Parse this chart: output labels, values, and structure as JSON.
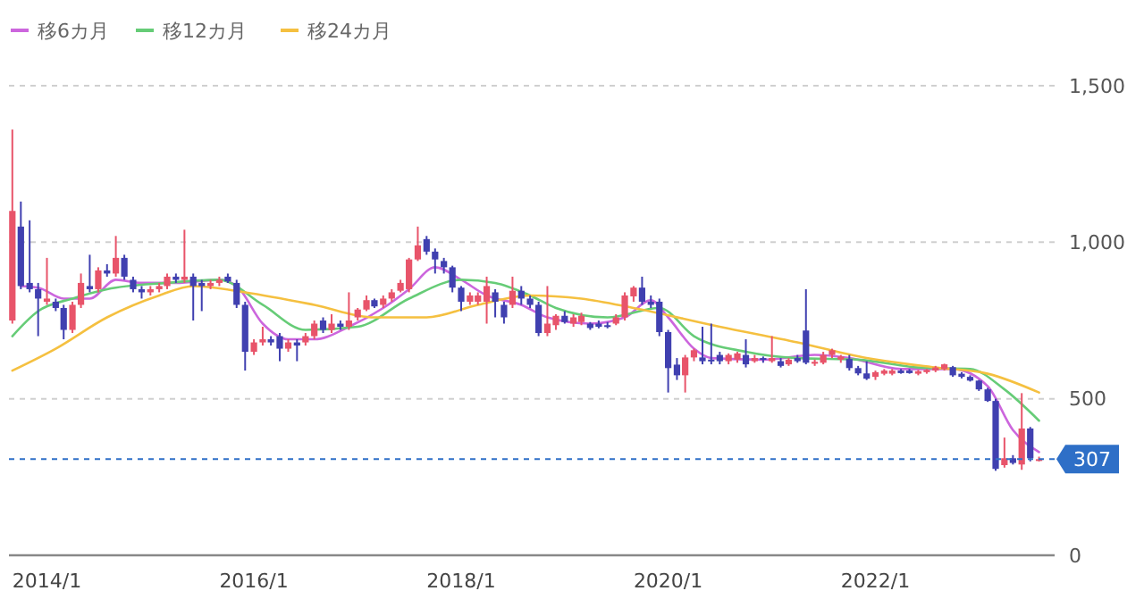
{
  "chart_data": {
    "type": "candlestick",
    "x": [
      "2013-09",
      "2013-10",
      "2013-11",
      "2013-12",
      "2014-01",
      "2014-02",
      "2014-03",
      "2014-04",
      "2014-05",
      "2014-06",
      "2014-07",
      "2014-08",
      "2014-09",
      "2014-10",
      "2014-11",
      "2014-12",
      "2015-01",
      "2015-02",
      "2015-03",
      "2015-04",
      "2015-05",
      "2015-06",
      "2015-07",
      "2015-08",
      "2015-09",
      "2015-10",
      "2015-11",
      "2015-12",
      "2016-01",
      "2016-02",
      "2016-03",
      "2016-04",
      "2016-05",
      "2016-06",
      "2016-07",
      "2016-08",
      "2016-09",
      "2016-10",
      "2016-11",
      "2016-12",
      "2017-01",
      "2017-02",
      "2017-03",
      "2017-04",
      "2017-05",
      "2017-06",
      "2017-07",
      "2017-08",
      "2017-09",
      "2017-10",
      "2017-11",
      "2017-12",
      "2018-01",
      "2018-02",
      "2018-03",
      "2018-04",
      "2018-05",
      "2018-06",
      "2018-07",
      "2018-08",
      "2018-09",
      "2018-10",
      "2018-11",
      "2018-12",
      "2019-01",
      "2019-02",
      "2019-03",
      "2019-04",
      "2019-05",
      "2019-06",
      "2019-07",
      "2019-08",
      "2019-09",
      "2019-10",
      "2019-11",
      "2019-12",
      "2020-01",
      "2020-02",
      "2020-03",
      "2020-04",
      "2020-05",
      "2020-06",
      "2020-07",
      "2020-08",
      "2020-09",
      "2020-10",
      "2020-11",
      "2020-12",
      "2021-01",
      "2021-02",
      "2021-03",
      "2021-04",
      "2021-05",
      "2021-06",
      "2021-07",
      "2021-08",
      "2021-09",
      "2021-10",
      "2021-11",
      "2021-12",
      "2022-01",
      "2022-02",
      "2022-03",
      "2022-04",
      "2022-05",
      "2022-06",
      "2022-07",
      "2022-08",
      "2022-09",
      "2022-10",
      "2022-11",
      "2022-12",
      "2023-01",
      "2023-02",
      "2023-03",
      "2023-04",
      "2023-05",
      "2023-06",
      "2023-07",
      "2023-08"
    ],
    "ohlc": [
      [
        750,
        1360,
        740,
        1100
      ],
      [
        1050,
        1130,
        850,
        860
      ],
      [
        870,
        1070,
        840,
        850
      ],
      [
        850,
        870,
        700,
        820
      ],
      [
        810,
        950,
        800,
        820
      ],
      [
        810,
        820,
        780,
        790
      ],
      [
        790,
        800,
        690,
        720
      ],
      [
        720,
        810,
        710,
        800
      ],
      [
        800,
        900,
        790,
        870
      ],
      [
        860,
        960,
        840,
        850
      ],
      [
        850,
        920,
        840,
        910
      ],
      [
        910,
        930,
        890,
        900
      ],
      [
        900,
        1020,
        890,
        950
      ],
      [
        950,
        960,
        880,
        890
      ],
      [
        880,
        890,
        840,
        850
      ],
      [
        850,
        860,
        820,
        840
      ],
      [
        840,
        860,
        830,
        850
      ],
      [
        850,
        870,
        840,
        860
      ],
      [
        860,
        900,
        850,
        890
      ],
      [
        890,
        900,
        870,
        880
      ],
      [
        880,
        1040,
        870,
        890
      ],
      [
        890,
        900,
        750,
        860
      ],
      [
        870,
        880,
        780,
        860
      ],
      [
        860,
        880,
        850,
        870
      ],
      [
        870,
        890,
        860,
        880
      ],
      [
        890,
        900,
        870,
        875
      ],
      [
        870,
        880,
        790,
        800
      ],
      [
        800,
        810,
        590,
        650
      ],
      [
        650,
        690,
        640,
        680
      ],
      [
        680,
        730,
        670,
        690
      ],
      [
        690,
        700,
        670,
        680
      ],
      [
        700,
        710,
        620,
        660
      ],
      [
        660,
        690,
        650,
        680
      ],
      [
        680,
        690,
        620,
        670
      ],
      [
        680,
        710,
        670,
        700
      ],
      [
        700,
        750,
        690,
        740
      ],
      [
        750,
        760,
        710,
        720
      ],
      [
        720,
        770,
        710,
        740
      ],
      [
        740,
        750,
        720,
        730
      ],
      [
        730,
        840,
        720,
        750
      ],
      [
        760,
        790,
        750,
        785
      ],
      [
        785,
        830,
        780,
        815
      ],
      [
        815,
        820,
        790,
        795
      ],
      [
        800,
        830,
        790,
        820
      ],
      [
        820,
        850,
        810,
        840
      ],
      [
        845,
        880,
        840,
        870
      ],
      [
        850,
        950,
        840,
        945
      ],
      [
        945,
        1050,
        940,
        990
      ],
      [
        1010,
        1020,
        960,
        970
      ],
      [
        970,
        980,
        900,
        945
      ],
      [
        940,
        950,
        900,
        920
      ],
      [
        920,
        925,
        840,
        855
      ],
      [
        855,
        860,
        780,
        810
      ],
      [
        810,
        840,
        800,
        830
      ],
      [
        810,
        840,
        800,
        830
      ],
      [
        810,
        890,
        740,
        860
      ],
      [
        840,
        850,
        760,
        810
      ],
      [
        800,
        810,
        740,
        760
      ],
      [
        800,
        890,
        790,
        845
      ],
      [
        845,
        860,
        800,
        820
      ],
      [
        820,
        830,
        790,
        800
      ],
      [
        800,
        810,
        700,
        710
      ],
      [
        710,
        860,
        700,
        740
      ],
      [
        735,
        770,
        720,
        765
      ],
      [
        765,
        780,
        740,
        745
      ],
      [
        740,
        770,
        730,
        760
      ],
      [
        745,
        775,
        735,
        765
      ],
      [
        740,
        745,
        720,
        726
      ],
      [
        740,
        750,
        725,
        730
      ],
      [
        735,
        745,
        725,
        730
      ],
      [
        740,
        770,
        735,
        760
      ],
      [
        760,
        840,
        750,
        830
      ],
      [
        827,
        860,
        810,
        855
      ],
      [
        855,
        890,
        800,
        810
      ],
      [
        810,
        830,
        790,
        800
      ],
      [
        810,
        820,
        700,
        713
      ],
      [
        713,
        720,
        520,
        598
      ],
      [
        609,
        630,
        560,
        575
      ],
      [
        575,
        640,
        520,
        632
      ],
      [
        632,
        660,
        620,
        655
      ],
      [
        632,
        730,
        610,
        620
      ],
      [
        625,
        740,
        610,
        620
      ],
      [
        640,
        650,
        610,
        620
      ],
      [
        620,
        645,
        610,
        640
      ],
      [
        625,
        650,
        615,
        645
      ],
      [
        640,
        690,
        600,
        610
      ],
      [
        620,
        640,
        615,
        630
      ],
      [
        630,
        635,
        615,
        625
      ],
      [
        620,
        700,
        615,
        630
      ],
      [
        620,
        630,
        600,
        605
      ],
      [
        610,
        630,
        605,
        625
      ],
      [
        630,
        640,
        615,
        620
      ],
      [
        718,
        850,
        610,
        615
      ],
      [
        612,
        625,
        605,
        618
      ],
      [
        615,
        650,
        610,
        640
      ],
      [
        640,
        660,
        630,
        655
      ],
      [
        625,
        640,
        615,
        635
      ],
      [
        627,
        640,
        590,
        598
      ],
      [
        598,
        605,
        575,
        581
      ],
      [
        581,
        620,
        560,
        564
      ],
      [
        570,
        590,
        560,
        585
      ],
      [
        580,
        595,
        575,
        590
      ],
      [
        580,
        595,
        575,
        590
      ],
      [
        590,
        595,
        580,
        582
      ],
      [
        590,
        595,
        580,
        582
      ],
      [
        580,
        592,
        575,
        588
      ],
      [
        585,
        595,
        580,
        592
      ],
      [
        590,
        605,
        585,
        600
      ],
      [
        595,
        612,
        590,
        610
      ],
      [
        601,
        605,
        570,
        575
      ],
      [
        580,
        585,
        565,
        570
      ],
      [
        570,
        575,
        555,
        558
      ],
      [
        558,
        560,
        525,
        530
      ],
      [
        530,
        535,
        490,
        493
      ],
      [
        493,
        500,
        270,
        276
      ],
      [
        288,
        376,
        280,
        310
      ],
      [
        310,
        320,
        290,
        295
      ],
      [
        290,
        518,
        273,
        405
      ],
      [
        405,
        410,
        300,
        310
      ],
      [
        305,
        315,
        300,
        307
      ]
    ],
    "series": [
      {
        "name": "移6カ月",
        "type": "line",
        "color": "#cc66dd",
        "x": [
          "2013-10",
          "2013-12",
          "2014-03",
          "2014-06",
          "2014-09",
          "2014-12",
          "2015-04",
          "2015-09",
          "2015-11",
          "2016-02",
          "2016-05",
          "2016-08",
          "2016-12",
          "2017-04",
          "2017-07",
          "2017-10",
          "2018-01",
          "2018-04",
          "2018-08",
          "2018-11",
          "2019-04",
          "2019-08",
          "2019-11",
          "2020-01",
          "2020-04",
          "2020-06",
          "2020-12",
          "2021-06",
          "2021-10",
          "2022-04",
          "2022-10",
          "2023-02",
          "2023-05",
          "2023-08"
        ],
        "values": [
          860,
          855,
          820,
          820,
          880,
          870,
          870,
          880,
          860,
          740,
          690,
          690,
          730,
          790,
          850,
          920,
          880,
          830,
          800,
          760,
          740,
          760,
          815,
          760,
          660,
          630,
          625,
          640,
          630,
          595,
          595,
          540,
          400,
          330
        ]
      },
      {
        "name": "移12カ月",
        "type": "line",
        "color": "#66cc77",
        "x": [
          "2013-09",
          "2013-12",
          "2014-04",
          "2014-08",
          "2015-03",
          "2015-09",
          "2016-02",
          "2016-07",
          "2017-01",
          "2017-07",
          "2018-01",
          "2018-05",
          "2018-09",
          "2018-12",
          "2019-06",
          "2019-12",
          "2020-04",
          "2020-10",
          "2021-04",
          "2021-11",
          "2022-06",
          "2022-12",
          "2023-04",
          "2023-08"
        ],
        "values": [
          700,
          780,
          820,
          850,
          870,
          880,
          800,
          720,
          730,
          820,
          880,
          870,
          830,
          790,
          760,
          790,
          700,
          650,
          630,
          625,
          600,
          595,
          530,
          430
        ]
      },
      {
        "name": "移24カ月",
        "type": "line",
        "color": "#f5c040",
        "x": [
          "2013-09",
          "2014-02",
          "2014-08",
          "2015-02",
          "2015-06",
          "2015-12",
          "2016-08",
          "2017-03",
          "2017-09",
          "2018-03",
          "2018-09",
          "2019-03",
          "2019-09",
          "2020-07",
          "2021-04",
          "2021-12",
          "2022-08",
          "2023-02",
          "2023-08"
        ],
        "values": [
          590,
          660,
          760,
          830,
          860,
          840,
          800,
          760,
          760,
          800,
          830,
          820,
          790,
          730,
          680,
          630,
          600,
          580,
          520
        ]
      }
    ],
    "xlim": [
      "2013-08-20",
      "2023-09-25"
    ],
    "xticks": [
      {
        "value": "2014-01",
        "label": "2014/1"
      },
      {
        "value": "2016-01",
        "label": "2016/1"
      },
      {
        "value": "2018-01",
        "label": "2018/1"
      },
      {
        "value": "2020-01",
        "label": "2020/1"
      },
      {
        "value": "2022-01",
        "label": "2022/1"
      }
    ],
    "ylim": [
      0,
      1500
    ],
    "yticks": [
      0,
      500,
      {
        "value": 1000,
        "label": "1,000"
      },
      {
        "value": 1500,
        "label": "1,500"
      }
    ],
    "grid": "y",
    "legend": "top left",
    "ref_lines": [
      {
        "axis": "y",
        "value": 307,
        "label": "307",
        "color": "#2e6fc7",
        "line_style": "dashed"
      }
    ]
  }
}
